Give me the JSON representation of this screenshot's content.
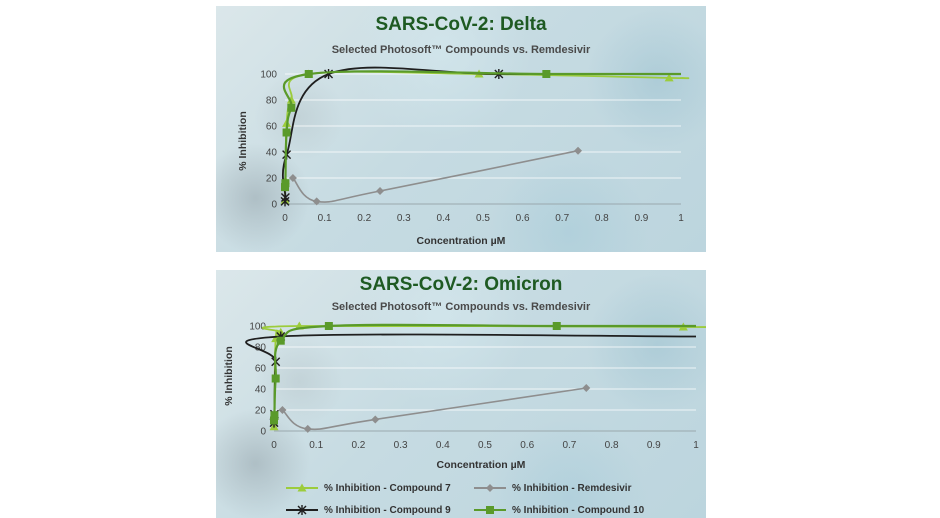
{
  "chart_data": [
    {
      "type": "line",
      "title": "SARS-CoV-2: Delta",
      "subtitle": "Selected Photosoft™ Compounds vs. Remdesivir",
      "xlabel": "Concentration µM",
      "ylabel": "% Inhibition",
      "xlim": [
        0,
        1
      ],
      "ylim": [
        0,
        100
      ],
      "x_ticks": [
        0,
        0.1,
        0.2,
        0.3,
        0.4,
        0.5,
        0.6,
        0.7,
        0.8,
        0.9,
        1
      ],
      "y_ticks": [
        0,
        20,
        40,
        60,
        80,
        100
      ],
      "grid": "horizontal",
      "series": [
        {
          "name": "% Inhibition - Compound 7",
          "color": "#9ccc3c",
          "marker": "triangle",
          "x": [
            0,
            0.001,
            0.004,
            0.016,
            0.06,
            0.49,
            0.97
          ],
          "y": [
            3,
            18,
            62,
            80,
            100,
            100,
            97
          ]
        },
        {
          "name": "% Inhibition - Remdesivir",
          "color": "#8e8e8e",
          "marker": "diamond",
          "x": [
            0.02,
            0.08,
            0.24,
            0.74
          ],
          "y": [
            20,
            2,
            10,
            41
          ]
        },
        {
          "name": "% Inhibition - Compound 9",
          "color": "#1f1f1f",
          "marker": "star",
          "x": [
            0,
            0.001,
            0.004,
            0.11,
            0.54
          ],
          "y": [
            2,
            5,
            38,
            100,
            100
          ]
        },
        {
          "name": "% Inhibition - Compound 10",
          "color": "#5a9a2a",
          "marker": "square",
          "x": [
            0,
            0.001,
            0.004,
            0.016,
            0.06,
            0.66
          ],
          "y": [
            13,
            16,
            55,
            74,
            100,
            100
          ]
        }
      ]
    },
    {
      "type": "line",
      "title": "SARS-CoV-2: Omicron",
      "subtitle": "Selected Photosoft™ Compounds vs. Remdesivir",
      "xlabel": "Concentration µM",
      "ylabel": "% Inhibition",
      "xlim": [
        0,
        1
      ],
      "ylim": [
        0,
        100
      ],
      "x_ticks": [
        0,
        0.1,
        0.2,
        0.3,
        0.4,
        0.5,
        0.6,
        0.7,
        0.8,
        0.9,
        1
      ],
      "y_ticks": [
        0,
        20,
        40,
        60,
        80,
        100
      ],
      "grid": "horizontal",
      "series": [
        {
          "name": "% Inhibition - Compound 7",
          "color": "#9ccc3c",
          "marker": "triangle",
          "x": [
            0,
            0.001,
            0.004,
            0.016,
            0.06,
            0.97
          ],
          "y": [
            4,
            14,
            88,
            94,
            100,
            99
          ]
        },
        {
          "name": "% Inhibition - Remdesivir",
          "color": "#8e8e8e",
          "marker": "diamond",
          "x": [
            0.02,
            0.08,
            0.24,
            0.74
          ],
          "y": [
            20,
            2,
            11,
            41
          ]
        },
        {
          "name": "% Inhibition - Compound 9",
          "color": "#1f1f1f",
          "marker": "star",
          "x": [
            0,
            0.001,
            0.004,
            0.016
          ],
          "y": [
            8,
            16,
            66,
            90
          ]
        },
        {
          "name": "% Inhibition - Compound 10",
          "color": "#5a9a2a",
          "marker": "square",
          "x": [
            0,
            0.001,
            0.004,
            0.016,
            0.13,
            0.67
          ],
          "y": [
            10,
            15,
            50,
            86,
            100,
            100
          ]
        }
      ]
    }
  ],
  "legend": [
    {
      "label": "% Inhibition - Compound 7",
      "color": "#9ccc3c",
      "marker": "triangle"
    },
    {
      "label": "% Inhibition - Remdesivir",
      "color": "#8e8e8e",
      "marker": "diamond"
    },
    {
      "label": "% Inhibition - Compound 9",
      "color": "#1f1f1f",
      "marker": "star"
    },
    {
      "label": "% Inhibition - Compound 10",
      "color": "#5a9a2a",
      "marker": "square"
    }
  ]
}
